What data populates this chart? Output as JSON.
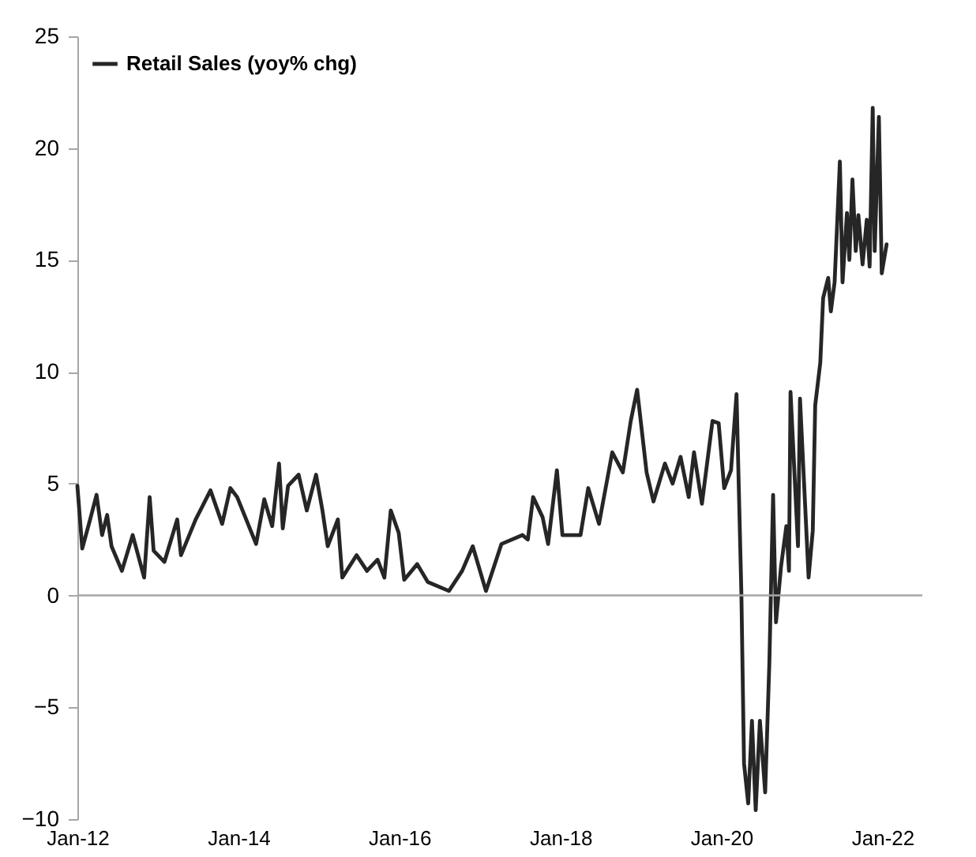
{
  "chart_data": {
    "type": "line",
    "legend": "top left",
    "x": [
      "2012-01-01",
      "2012-01-23",
      "2012-02-28",
      "2012-03-28",
      "2012-04-22",
      "2012-05-15",
      "2012-06-04",
      "2012-07-21",
      "2012-09-08",
      "2012-10-30",
      "2012-11-24",
      "2012-12-12",
      "2013-01-30",
      "2013-03-29",
      "2013-04-15",
      "2013-06-21",
      "2013-08-27",
      "2013-10-19",
      "2013-11-25",
      "2013-12-26",
      "2014-03-22",
      "2014-04-28",
      "2014-06-03",
      "2014-07-04",
      "2014-07-21",
      "2014-08-14",
      "2014-10-01",
      "2014-11-07",
      "2014-12-19",
      "2015-01-17",
      "2015-02-10",
      "2015-03-28",
      "2015-04-17",
      "2015-06-21",
      "2015-08-07",
      "2015-09-24",
      "2015-10-25",
      "2015-11-23",
      "2015-12-29",
      "2016-01-23",
      "2016-03-22",
      "2016-05-09",
      "2016-08-13",
      "2016-10-12",
      "2016-11-29",
      "2017-01-28",
      "2017-04-08",
      "2017-07-13",
      "2017-08-06",
      "2017-08-30",
      "2017-10-12",
      "2017-11-06",
      "2017-12-16",
      "2018-01-10",
      "2018-04-02",
      "2018-05-07",
      "2018-06-25",
      "2018-08-24",
      "2018-10-11",
      "2018-11-16",
      "2018-12-15",
      "2019-01-27",
      "2019-02-27",
      "2019-04-20",
      "2019-05-25",
      "2019-06-30",
      "2019-08-06",
      "2019-08-30",
      "2019-10-05",
      "2019-11-22",
      "2019-12-20",
      "2020-01-14",
      "2020-02-14",
      "2020-03-10",
      "2020-04-01",
      "2020-04-13",
      "2020-05-02",
      "2020-05-19",
      "2020-06-05",
      "2020-06-24",
      "2020-07-18",
      "2020-08-06",
      "2020-08-23",
      "2020-09-05",
      "2020-09-28",
      "2020-10-22",
      "2020-11-03",
      "2020-11-10",
      "2020-12-14",
      "2020-12-23",
      "2021-01-14",
      "2021-01-31",
      "2021-02-19",
      "2021-03-02",
      "2021-03-25",
      "2021-04-07",
      "2021-04-30",
      "2021-05-12",
      "2021-05-29",
      "2021-06-22",
      "2021-07-04",
      "2021-07-24",
      "2021-08-04",
      "2021-08-18",
      "2021-09-02",
      "2021-09-14",
      "2021-10-03",
      "2021-10-22",
      "2021-11-04",
      "2021-11-18",
      "2021-11-27",
      "2021-12-16",
      "2021-12-29",
      "2022-01-20"
    ],
    "series": [
      {
        "name": "Retail Sales (yoy% chg)",
        "color": "#262626",
        "values": [
          4.9,
          2.1,
          3.4,
          4.5,
          2.7,
          3.6,
          2.2,
          1.1,
          2.7,
          0.8,
          4.4,
          2.0,
          1.5,
          3.4,
          1.8,
          3.4,
          4.7,
          3.2,
          4.8,
          4.4,
          2.3,
          4.3,
          3.1,
          5.9,
          3.0,
          4.9,
          5.4,
          3.8,
          5.4,
          3.8,
          2.2,
          3.4,
          0.8,
          1.8,
          1.1,
          1.6,
          0.8,
          3.8,
          2.8,
          0.7,
          1.4,
          0.6,
          0.2,
          1.1,
          2.2,
          0.2,
          2.3,
          2.7,
          2.5,
          4.4,
          3.5,
          2.3,
          5.6,
          2.7,
          2.7,
          4.8,
          3.2,
          6.4,
          5.5,
          7.8,
          9.2,
          5.5,
          4.2,
          5.9,
          5.0,
          6.2,
          4.4,
          6.4,
          4.1,
          7.8,
          7.7,
          4.8,
          5.6,
          9.0,
          0.1,
          -7.5,
          -9.3,
          -5.6,
          -9.6,
          -5.6,
          -8.8,
          -3.0,
          4.5,
          -1.2,
          1.3,
          3.1,
          1.1,
          9.1,
          2.2,
          8.8,
          4.3,
          0.8,
          2.9,
          8.5,
          10.4,
          13.3,
          14.2,
          12.7,
          14.0,
          19.4,
          14.0,
          17.1,
          15.0,
          18.6,
          15.4,
          17.0,
          14.8,
          16.8,
          14.7,
          21.8,
          15.4,
          21.4,
          14.4,
          15.7
        ]
      }
    ],
    "xlim": [
      "2012-01-01",
      "2022-07-01"
    ],
    "xticks": [
      {
        "value": "2012-01-01",
        "label": "Jan-12"
      },
      {
        "value": "2014-01-01",
        "label": "Jan-14"
      },
      {
        "value": "2016-01-01",
        "label": "Jan-16"
      },
      {
        "value": "2018-01-01",
        "label": "Jan-18"
      },
      {
        "value": "2020-01-01",
        "label": "Jan-20"
      },
      {
        "value": "2022-01-01",
        "label": "Jan-22"
      }
    ],
    "ylim": [
      -10,
      25
    ],
    "yticks": [
      -10,
      -5,
      0,
      5,
      10,
      15,
      20,
      25
    ],
    "ref_lines": [
      {
        "axis": "y",
        "value": 0,
        "color": "#a6a6a6"
      }
    ]
  }
}
